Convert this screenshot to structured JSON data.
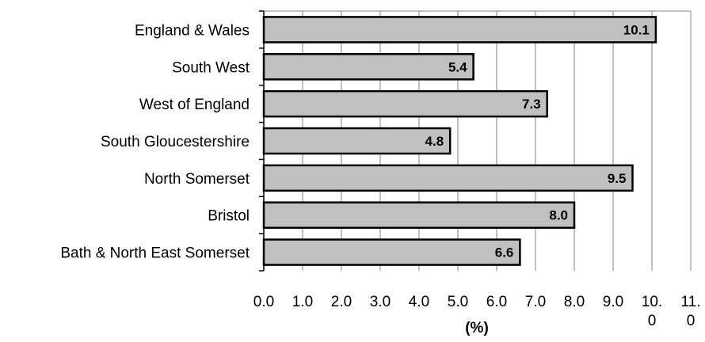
{
  "chart_data": {
    "type": "bar",
    "orientation": "horizontal",
    "categories": [
      "England & Wales",
      "South West",
      "West of England",
      "South Gloucestershire",
      "North Somerset",
      "Bristol",
      "Bath & North East Somerset"
    ],
    "values": [
      10.1,
      5.4,
      7.3,
      4.8,
      9.5,
      8.0,
      6.6
    ],
    "data_labels": [
      "10.1",
      "5.4",
      "7.3",
      "4.8",
      "9.5",
      "8.0",
      "6.6"
    ],
    "xlabel": "(%)",
    "ylabel": "",
    "title": "",
    "xlim": [
      0,
      11
    ],
    "x_ticks": [
      {
        "value": 0,
        "lines": [
          "0.0"
        ]
      },
      {
        "value": 1,
        "lines": [
          "1.0"
        ]
      },
      {
        "value": 2,
        "lines": [
          "2.0"
        ]
      },
      {
        "value": 3,
        "lines": [
          "3.0"
        ]
      },
      {
        "value": 4,
        "lines": [
          "4.0"
        ]
      },
      {
        "value": 5,
        "lines": [
          "5.0"
        ]
      },
      {
        "value": 6,
        "lines": [
          "6.0"
        ]
      },
      {
        "value": 7,
        "lines": [
          "7.0"
        ]
      },
      {
        "value": 8,
        "lines": [
          "8.0"
        ]
      },
      {
        "value": 9,
        "lines": [
          "9.0"
        ]
      },
      {
        "value": 10,
        "lines": [
          "10.",
          "0"
        ]
      },
      {
        "value": 11,
        "lines": [
          "11.",
          "0"
        ]
      }
    ],
    "grid": "vertical",
    "bar_color": "#c0c0c0",
    "bar_border_color": "#000000",
    "grid_color": "#808080"
  }
}
